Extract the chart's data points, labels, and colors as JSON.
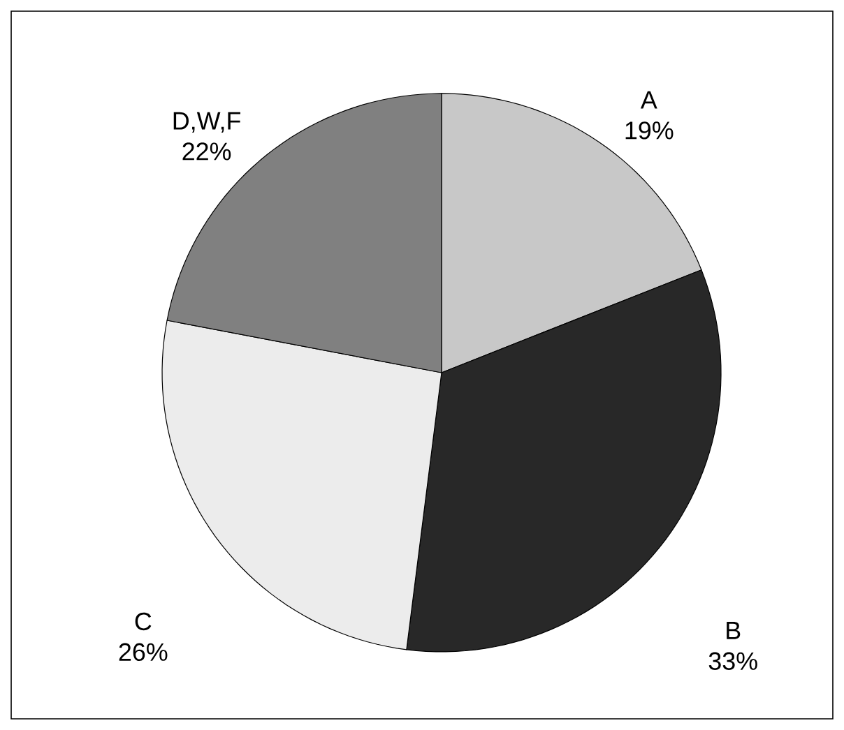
{
  "chart_data": {
    "type": "pie",
    "categories": [
      "A",
      "B",
      "C",
      "D,W,F"
    ],
    "values": [
      19,
      33,
      26,
      22
    ],
    "value_labels": [
      "19%",
      "33%",
      "26%",
      "22%"
    ],
    "colors": [
      "#c8c8c8",
      "#282828",
      "#ececec",
      "#808080"
    ]
  }
}
